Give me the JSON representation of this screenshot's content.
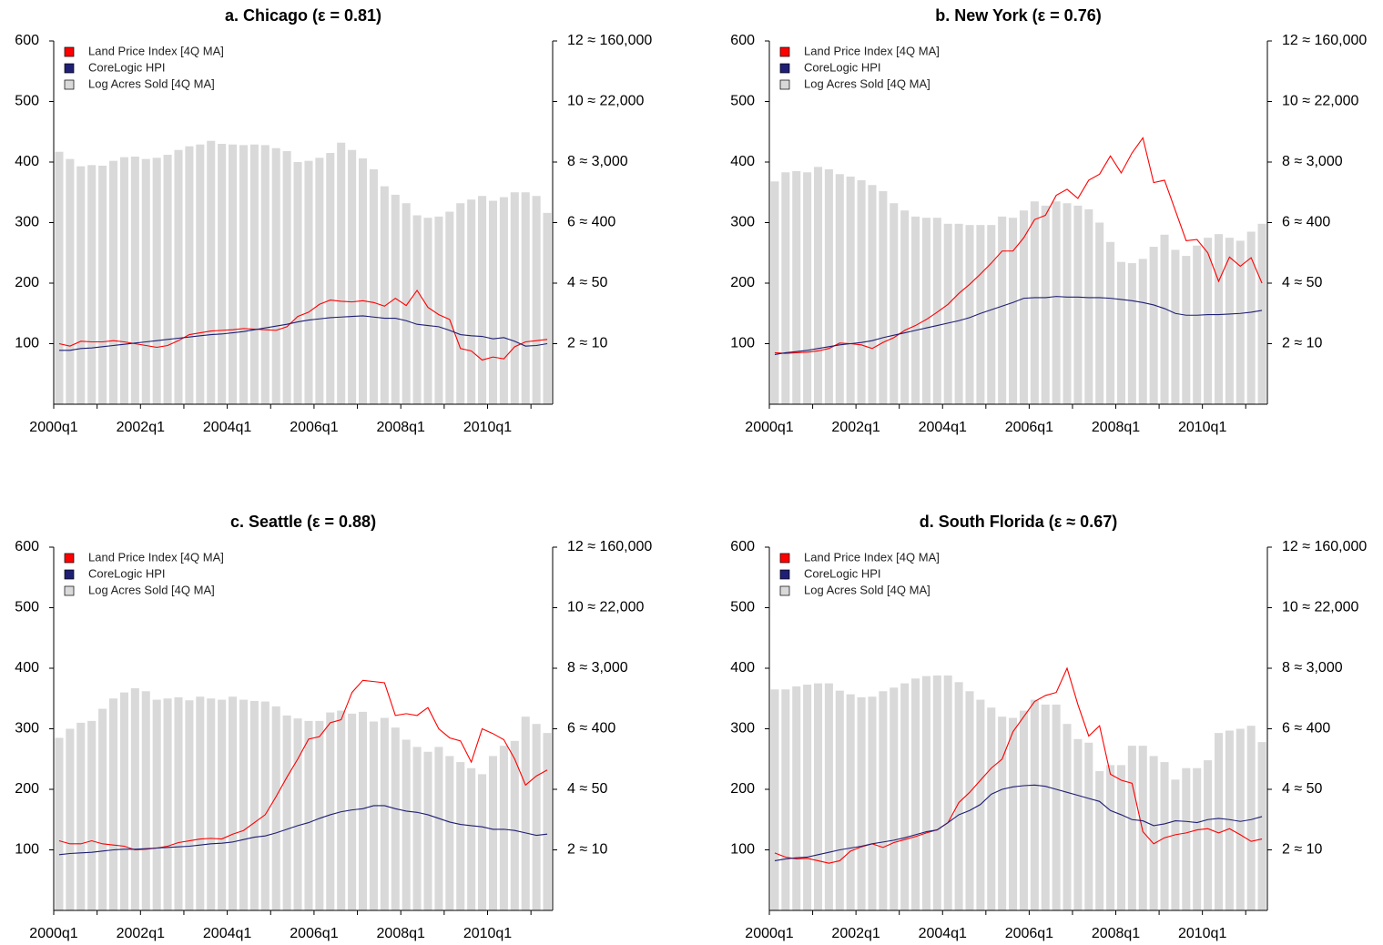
{
  "chart_data": [
    {
      "type": "combo",
      "title": "a. Chicago (ε = 0.81)",
      "categories": [
        "2000q1",
        null,
        null,
        null,
        null,
        null,
        null,
        null,
        "2002q1",
        null,
        null,
        null,
        null,
        null,
        null,
        null,
        "2004q1",
        null,
        null,
        null,
        null,
        null,
        null,
        null,
        "2006q1",
        null,
        null,
        null,
        null,
        null,
        null,
        null,
        "2008q1",
        null,
        null,
        null,
        null,
        null,
        null,
        null,
        "2010q1",
        null,
        null,
        null,
        null,
        null
      ],
      "ylim": [
        0,
        600
      ],
      "yticks": [
        100,
        200,
        300,
        400,
        500,
        600
      ],
      "y2lim": [
        0,
        12
      ],
      "y2ticks": [
        {
          "value": 2,
          "label": "2 ≈ 10"
        },
        {
          "value": 4,
          "label": "4 ≈ 50"
        },
        {
          "value": 6,
          "label": "6 ≈ 400"
        },
        {
          "value": 8,
          "label": "8 ≈ 3,000"
        },
        {
          "value": 10,
          "label": "10 ≈ 22,000"
        },
        {
          "value": 12,
          "label": "12 ≈ 160,000"
        }
      ],
      "legend": "upper left",
      "series": [
        {
          "name": "Land Price Index [4Q MA]",
          "type": "line",
          "color": "#ff0000",
          "values": [
            100,
            96,
            104,
            103,
            103,
            105,
            103,
            100,
            97,
            94,
            97,
            105,
            115,
            118,
            121,
            122,
            123,
            125,
            124,
            123,
            122,
            128,
            145,
            152,
            165,
            172,
            170,
            169,
            171,
            168,
            162,
            175,
            163,
            188,
            160,
            148,
            140,
            92,
            88,
            73,
            78,
            75,
            95,
            103,
            105,
            107
          ]
        },
        {
          "name": "CoreLogic HPI",
          "type": "line",
          "color": "#1f1f75",
          "values": [
            89,
            89,
            92,
            93,
            95,
            97,
            99,
            101,
            103,
            105,
            107,
            109,
            111,
            113,
            115,
            116,
            118,
            120,
            123,
            126,
            129,
            132,
            136,
            139,
            141,
            143,
            144,
            145,
            146,
            144,
            142,
            142,
            138,
            132,
            130,
            128,
            122,
            115,
            113,
            112,
            108,
            110,
            104,
            96,
            97,
            100
          ]
        },
        {
          "name": "Log Acres Sold [4Q MA]",
          "type": "bar",
          "axis": "y2",
          "color": "#d9d9d9",
          "values": [
            8.34,
            8.1,
            7.86,
            7.9,
            7.88,
            8.04,
            8.16,
            8.18,
            8.1,
            8.14,
            8.24,
            8.4,
            8.52,
            8.58,
            8.7,
            8.6,
            8.58,
            8.56,
            8.58,
            8.56,
            8.46,
            8.36,
            8,
            8.04,
            8.14,
            8.3,
            8.64,
            8.4,
            8.12,
            7.76,
            7.2,
            6.92,
            6.64,
            6.24,
            6.16,
            6.2,
            6.36,
            6.64,
            6.76,
            6.88,
            6.72,
            6.84,
            7,
            7,
            6.88,
            6.32
          ]
        }
      ]
    },
    {
      "type": "combo",
      "title": "b. New York (ε = 0.76)",
      "categories": [
        "2000q1",
        null,
        null,
        null,
        null,
        null,
        null,
        null,
        "2002q1",
        null,
        null,
        null,
        null,
        null,
        null,
        null,
        "2004q1",
        null,
        null,
        null,
        null,
        null,
        null,
        null,
        "2006q1",
        null,
        null,
        null,
        null,
        null,
        null,
        null,
        "2008q1",
        null,
        null,
        null,
        null,
        null,
        null,
        null,
        "2010q1",
        null,
        null,
        null,
        null,
        null
      ],
      "ylim": [
        0,
        600
      ],
      "yticks": [
        100,
        200,
        300,
        400,
        500,
        600
      ],
      "y2lim": [
        0,
        12
      ],
      "y2ticks": [
        {
          "value": 2,
          "label": "2 ≈ 10"
        },
        {
          "value": 4,
          "label": "4 ≈ 50"
        },
        {
          "value": 6,
          "label": "6 ≈ 400"
        },
        {
          "value": 8,
          "label": "8 ≈ 3,000"
        },
        {
          "value": 10,
          "label": "10 ≈ 22,000"
        },
        {
          "value": 12,
          "label": "12 ≈ 160,000"
        }
      ],
      "legend": "upper left",
      "series": [
        {
          "name": "Land Price Index [4Q MA]",
          "type": "line",
          "color": "#ff0000",
          "values": [
            85,
            84,
            85,
            86,
            88,
            92,
            101,
            100,
            98,
            92,
            102,
            110,
            122,
            130,
            140,
            152,
            165,
            183,
            198,
            215,
            233,
            253,
            253,
            275,
            305,
            312,
            345,
            355,
            340,
            370,
            380,
            410,
            382,
            415,
            440,
            366,
            370,
            320,
            270,
            272,
            250,
            203,
            243,
            228,
            242,
            200
          ]
        },
        {
          "name": "CoreLogic HPI",
          "type": "line",
          "color": "#1f1f75",
          "values": [
            82,
            85,
            87,
            89,
            92,
            95,
            98,
            100,
            102,
            105,
            110,
            114,
            118,
            122,
            126,
            130,
            134,
            138,
            143,
            150,
            156,
            162,
            168,
            175,
            176,
            176,
            178,
            177,
            177,
            176,
            176,
            175,
            173,
            171,
            168,
            164,
            158,
            150,
            147,
            147,
            148,
            148,
            149,
            150,
            152,
            155
          ]
        },
        {
          "name": "Log Acres Sold [4Q MA]",
          "type": "bar",
          "axis": "y2",
          "color": "#d9d9d9",
          "values": [
            7.36,
            7.66,
            7.7,
            7.66,
            7.84,
            7.76,
            7.6,
            7.52,
            7.4,
            7.24,
            7.04,
            6.64,
            6.4,
            6.2,
            6.16,
            6.16,
            5.96,
            5.96,
            5.92,
            5.92,
            5.92,
            6.2,
            6.16,
            6.4,
            6.7,
            6.56,
            6.7,
            6.64,
            6.56,
            6.44,
            6,
            5.36,
            4.7,
            4.66,
            4.8,
            5.2,
            5.6,
            5.1,
            4.9,
            5.24,
            5.5,
            5.62,
            5.5,
            5.4,
            5.7,
            5.96
          ]
        }
      ]
    },
    {
      "type": "combo",
      "title": "c. Seattle (ε = 0.88)",
      "categories": [
        "2000q1",
        null,
        null,
        null,
        null,
        null,
        null,
        null,
        "2002q1",
        null,
        null,
        null,
        null,
        null,
        null,
        null,
        "2004q1",
        null,
        null,
        null,
        null,
        null,
        null,
        null,
        "2006q1",
        null,
        null,
        null,
        null,
        null,
        null,
        null,
        "2008q1",
        null,
        null,
        null,
        null,
        null,
        null,
        null,
        "2010q1",
        null,
        null,
        null,
        null,
        null
      ],
      "ylim": [
        0,
        600
      ],
      "yticks": [
        100,
        200,
        300,
        400,
        500,
        600
      ],
      "y2lim": [
        0,
        12
      ],
      "y2ticks": [
        {
          "value": 2,
          "label": "2 ≈ 10"
        },
        {
          "value": 4,
          "label": "4 ≈ 50"
        },
        {
          "value": 6,
          "label": "6 ≈ 400"
        },
        {
          "value": 8,
          "label": "8 ≈ 3,000"
        },
        {
          "value": 10,
          "label": "10 ≈ 22,000"
        },
        {
          "value": 12,
          "label": "12 ≈ 160,000"
        }
      ],
      "legend": "upper left",
      "series": [
        {
          "name": "Land Price Index [4Q MA]",
          "type": "line",
          "color": "#ff0000",
          "values": [
            115,
            110,
            110,
            115,
            110,
            108,
            106,
            100,
            101,
            103,
            106,
            112,
            115,
            118,
            119,
            118,
            126,
            132,
            145,
            158,
            188,
            220,
            250,
            283,
            287,
            310,
            315,
            360,
            380,
            378,
            376,
            322,
            325,
            322,
            335,
            300,
            285,
            280,
            245,
            300,
            292,
            282,
            250,
            207,
            222,
            232
          ]
        },
        {
          "name": "CoreLogic HPI",
          "type": "line",
          "color": "#1f1f75",
          "values": [
            92,
            94,
            95,
            96,
            98,
            100,
            101,
            101,
            102,
            103,
            104,
            105,
            106,
            108,
            110,
            111,
            113,
            117,
            121,
            123,
            128,
            134,
            140,
            145,
            152,
            158,
            163,
            166,
            168,
            173,
            173,
            168,
            164,
            162,
            158,
            152,
            146,
            142,
            140,
            138,
            134,
            134,
            132,
            128,
            124,
            126
          ]
        },
        {
          "name": "Log Acres Sold [4Q MA]",
          "type": "bar",
          "axis": "y2",
          "color": "#d9d9d9",
          "values": [
            5.7,
            6,
            6.2,
            6.26,
            6.66,
            7,
            7.2,
            7.34,
            7.24,
            6.96,
            7,
            7.04,
            6.94,
            7.06,
            7,
            6.96,
            7.06,
            6.96,
            6.92,
            6.9,
            6.74,
            6.44,
            6.34,
            6.26,
            6.26,
            6.54,
            6.6,
            6.5,
            6.56,
            6.24,
            6.36,
            6.04,
            5.64,
            5.4,
            5.24,
            5.4,
            5.1,
            4.9,
            4.7,
            4.5,
            5.1,
            5.44,
            5.6,
            6.4,
            6.16,
            5.86
          ]
        }
      ]
    },
    {
      "type": "combo",
      "title": "d. South Florida (ε ≈ 0.67)",
      "categories": [
        "2000q1",
        null,
        null,
        null,
        null,
        null,
        null,
        null,
        "2002q1",
        null,
        null,
        null,
        null,
        null,
        null,
        null,
        "2004q1",
        null,
        null,
        null,
        null,
        null,
        null,
        null,
        "2006q1",
        null,
        null,
        null,
        null,
        null,
        null,
        null,
        "2008q1",
        null,
        null,
        null,
        null,
        null,
        null,
        null,
        "2010q1",
        null,
        null,
        null,
        null,
        null
      ],
      "ylim": [
        0,
        600
      ],
      "yticks": [
        100,
        200,
        300,
        400,
        500,
        600
      ],
      "y2lim": [
        0,
        12
      ],
      "y2ticks": [
        {
          "value": 2,
          "label": "2 ≈ 10"
        },
        {
          "value": 4,
          "label": "4 ≈ 50"
        },
        {
          "value": 6,
          "label": "6 ≈ 400"
        },
        {
          "value": 8,
          "label": "8 ≈ 3,000"
        },
        {
          "value": 10,
          "label": "10 ≈ 22,000"
        },
        {
          "value": 12,
          "label": "12 ≈ 160,000"
        }
      ],
      "legend": "upper left",
      "series": [
        {
          "name": "Land Price Index [4Q MA]",
          "type": "line",
          "color": "#ff0000",
          "values": [
            95,
            88,
            85,
            86,
            82,
            78,
            82,
            98,
            105,
            110,
            104,
            112,
            117,
            122,
            128,
            133,
            145,
            178,
            195,
            215,
            235,
            250,
            295,
            320,
            345,
            355,
            360,
            400,
            340,
            288,
            305,
            225,
            215,
            210,
            130,
            110,
            120,
            125,
            128,
            133,
            135,
            128,
            135,
            125,
            114,
            118
          ]
        },
        {
          "name": "CoreLogic HPI",
          "type": "line",
          "color": "#1f1f75",
          "values": [
            82,
            85,
            87,
            88,
            92,
            96,
            100,
            103,
            106,
            110,
            113,
            116,
            120,
            125,
            130,
            133,
            145,
            158,
            165,
            175,
            192,
            200,
            204,
            206,
            207,
            205,
            200,
            195,
            190,
            185,
            180,
            165,
            158,
            150,
            148,
            140,
            143,
            148,
            147,
            145,
            150,
            152,
            150,
            147,
            150,
            155
          ]
        },
        {
          "name": "Log Acres Sold [4Q MA]",
          "type": "bar",
          "axis": "y2",
          "color": "#d9d9d9",
          "values": [
            7.3,
            7.3,
            7.4,
            7.46,
            7.5,
            7.5,
            7.26,
            7.14,
            7.04,
            7.06,
            7.24,
            7.36,
            7.5,
            7.66,
            7.74,
            7.76,
            7.76,
            7.54,
            7.24,
            6.96,
            6.7,
            6.4,
            6.36,
            6.6,
            6.96,
            6.8,
            6.8,
            6.16,
            5.66,
            5.54,
            4.6,
            4.8,
            4.8,
            5.44,
            5.44,
            5.1,
            4.9,
            4.32,
            4.7,
            4.7,
            4.96,
            5.86,
            5.94,
            6,
            6.1,
            5.56
          ]
        }
      ]
    }
  ]
}
